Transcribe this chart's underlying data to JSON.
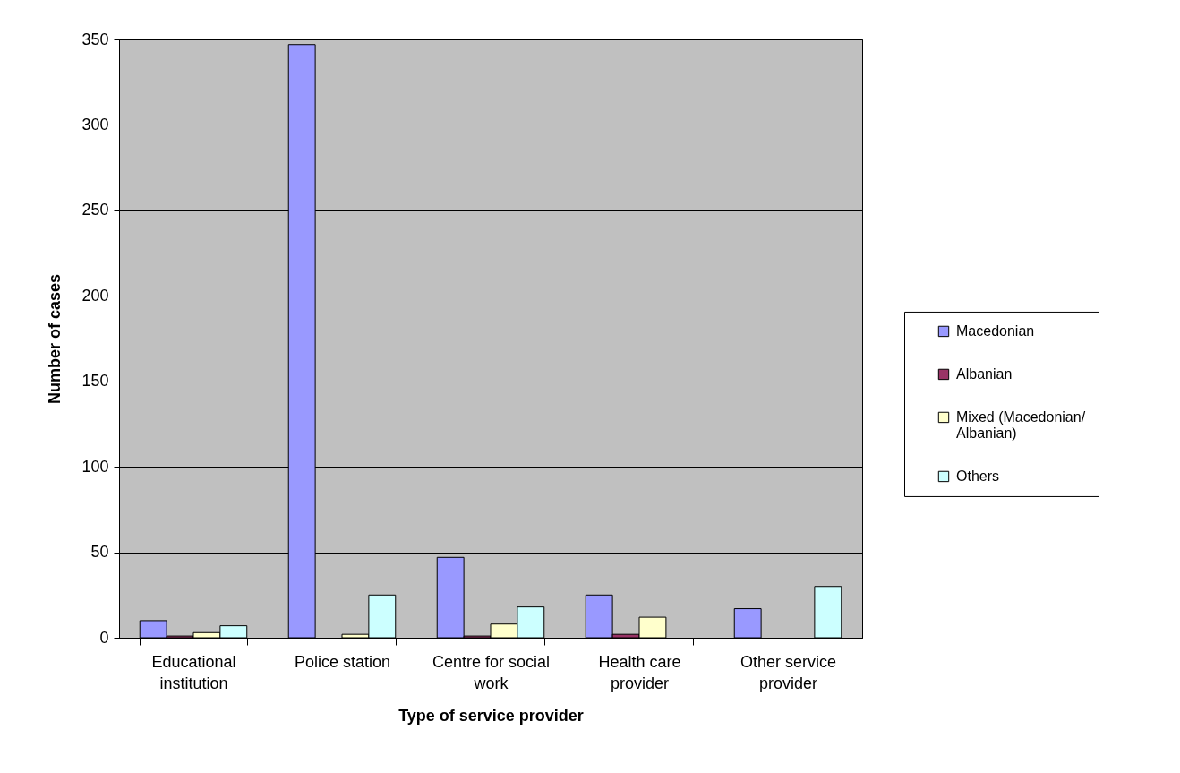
{
  "chart_data": {
    "type": "bar",
    "xlabel": "Type of service provider",
    "ylabel": "Number of cases",
    "categories": [
      "Educational institution",
      "Police station",
      "Centre for social work",
      "Health care provider",
      "Other service provider"
    ],
    "series": [
      {
        "name": "Macedonian",
        "color": "#9999ff",
        "values": [
          10,
          347,
          47,
          25,
          17
        ]
      },
      {
        "name": "Albanian",
        "color": "#993366",
        "values": [
          1,
          null,
          1,
          2,
          null
        ]
      },
      {
        "name": "Mixed (Macedonian/ Albanian)",
        "color": "#ffffcc",
        "values": [
          3,
          2,
          8,
          12,
          null
        ]
      },
      {
        "name": "Others",
        "color": "#ccffff",
        "values": [
          7,
          25,
          18,
          null,
          30
        ]
      }
    ],
    "ylim": [
      0,
      350
    ],
    "yticks": [
      0,
      50,
      100,
      150,
      200,
      250,
      300,
      350
    ],
    "grid": "y",
    "legend": "right"
  }
}
